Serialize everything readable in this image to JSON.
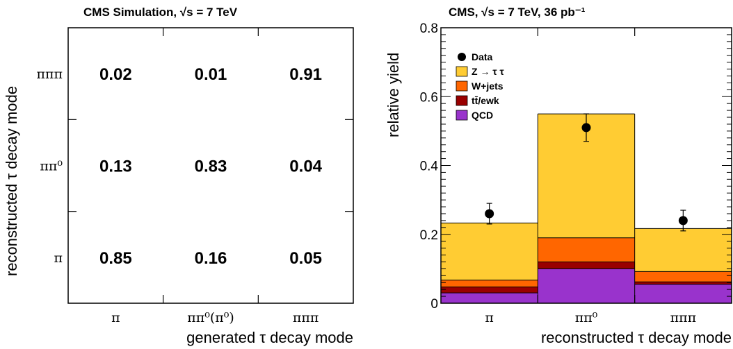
{
  "chart_data": [
    {
      "type": "table",
      "title": "CMS Simulation, √s = 7 TeV",
      "xlabel": "generated τ decay mode",
      "ylabel": "reconstructed τ decay mode",
      "columns": [
        "π",
        "ππ⁰(π⁰)",
        "πππ"
      ],
      "rows": [
        "πππ",
        "ππ⁰",
        "π"
      ],
      "cells": [
        [
          "0.02",
          "0.01",
          "0.91"
        ],
        [
          "0.13",
          "0.83",
          "0.04"
        ],
        [
          "0.85",
          "0.16",
          "0.05"
        ]
      ]
    },
    {
      "type": "bar",
      "stacked": true,
      "title": "CMS, √s = 7 TeV, 36 pb⁻¹",
      "xlabel": "reconstructed τ decay mode",
      "ylabel": "relative yield",
      "categories": [
        "π",
        "ππ⁰",
        "πππ"
      ],
      "ylim": [
        0,
        0.8
      ],
      "yticks": [
        "0",
        "0.2",
        "0.4",
        "0.6",
        "0.8"
      ],
      "series": [
        {
          "name": "QCD",
          "color": "#9933cc",
          "values": [
            0.03,
            0.1,
            0.055
          ]
        },
        {
          "name": "tt̄/ewk",
          "color": "#990000",
          "values": [
            0.017,
            0.02,
            0.007
          ]
        },
        {
          "name": "W+jets",
          "color": "#ff6600",
          "values": [
            0.02,
            0.07,
            0.03
          ]
        },
        {
          "name": "Z → τ τ",
          "color": "#ffcc33",
          "values": [
            0.166,
            0.36,
            0.125
          ]
        }
      ],
      "data": {
        "name": "Data",
        "values": [
          0.26,
          0.51,
          0.24
        ],
        "errors": [
          0.03,
          0.04,
          0.03
        ]
      },
      "legend_order": [
        "Data",
        "Z → τ τ",
        "W+jets",
        "tt̄/ewk",
        "QCD"
      ],
      "legend_position": "top-left"
    }
  ]
}
